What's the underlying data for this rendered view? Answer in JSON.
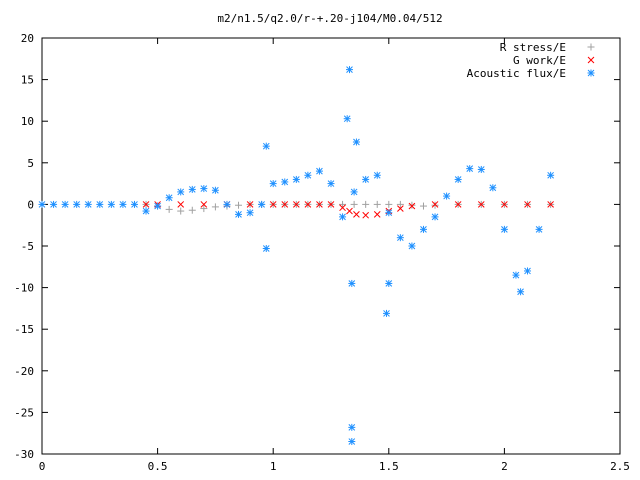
{
  "chart_data": {
    "type": "scatter",
    "title": "m2/n1.5/q2.0/r-+.20-j104/M0.04/512",
    "xlabel": "",
    "ylabel": "",
    "xlim": [
      0,
      2.5
    ],
    "ylim": [
      -30,
      20
    ],
    "xticks": [
      "0",
      "0.5",
      "1",
      "1.5",
      "2",
      "2.5"
    ],
    "yticks": [
      "20",
      "15",
      "10",
      "5",
      "0",
      "-5",
      "-10",
      "-15",
      "-20",
      "-25",
      "-30"
    ],
    "grid": false,
    "legend_position": "top-right",
    "series": [
      {
        "name": "R stress/E",
        "marker": "+",
        "color": "#a0a0a0",
        "x": [
          0.45,
          0.5,
          0.55,
          0.6,
          0.65,
          0.7,
          0.75,
          0.8,
          0.85,
          0.9,
          0.95,
          1.0,
          1.05,
          1.1,
          1.15,
          1.2,
          1.25,
          1.3,
          1.35,
          1.4,
          1.45,
          1.5,
          1.55,
          1.6,
          1.65,
          1.7,
          1.8,
          1.9,
          2.0,
          2.1,
          2.2
        ],
        "y": [
          0,
          -0.2,
          -0.6,
          -0.8,
          -0.7,
          -0.5,
          -0.3,
          -0.2,
          -0.1,
          0,
          0,
          0,
          0,
          0,
          0,
          0,
          0,
          0,
          0,
          0,
          0,
          0,
          0,
          -0.1,
          -0.2,
          -0.1,
          0,
          0,
          0,
          0,
          0
        ]
      },
      {
        "name": "G work/E",
        "marker": "x",
        "color": "#ff0000",
        "x": [
          0.45,
          0.5,
          0.6,
          0.7,
          0.8,
          0.9,
          1.0,
          1.05,
          1.1,
          1.15,
          1.2,
          1.25,
          1.3,
          1.33,
          1.36,
          1.4,
          1.45,
          1.5,
          1.55,
          1.6,
          1.7,
          1.8,
          1.9,
          2.0,
          2.1,
          2.2
        ],
        "y": [
          0,
          0,
          0,
          0,
          0,
          0,
          0,
          0,
          0,
          0,
          0,
          0,
          -0.4,
          -0.8,
          -1.2,
          -1.3,
          -1.2,
          -0.8,
          -0.5,
          -0.2,
          0,
          0,
          0,
          0,
          0,
          0
        ]
      },
      {
        "name": "Acoustic flux/E",
        "marker": "*",
        "color": "#1e90ff",
        "x": [
          0.0,
          0.05,
          0.1,
          0.15,
          0.2,
          0.25,
          0.3,
          0.35,
          0.4,
          0.45,
          0.5,
          0.55,
          0.6,
          0.65,
          0.7,
          0.75,
          0.8,
          0.85,
          0.9,
          0.95,
          1.0,
          1.05,
          1.1,
          1.15,
          1.2,
          1.25,
          1.3,
          1.35,
          1.4,
          1.45,
          1.5,
          1.55,
          1.6,
          1.65,
          1.7,
          1.75,
          1.8,
          1.85,
          1.9,
          1.95,
          2.0,
          2.05,
          2.07,
          2.1,
          2.15,
          2.2,
          0.97,
          0.97,
          1.33,
          1.32,
          1.34,
          1.34,
          1.34,
          1.5,
          1.49,
          1.36
        ],
        "y": [
          0,
          0,
          0,
          0,
          0,
          0,
          0,
          0,
          0,
          -0.8,
          -0.2,
          0.8,
          1.5,
          1.8,
          1.9,
          1.7,
          0,
          -1.2,
          -1.0,
          0,
          2.5,
          2.7,
          3.0,
          3.5,
          4.0,
          2.5,
          -1.5,
          1.5,
          3.0,
          3.5,
          -1.0,
          -4.0,
          -5.0,
          -3.0,
          -1.5,
          1.0,
          3.0,
          4.3,
          4.2,
          2.0,
          -3.0,
          -8.5,
          -10.5,
          -8.0,
          -3.0,
          3.5,
          7.0,
          -5.3,
          16.2,
          10.3,
          -9.5,
          -26.8,
          -28.5,
          -9.5,
          -13.1,
          7.5
        ]
      }
    ]
  }
}
